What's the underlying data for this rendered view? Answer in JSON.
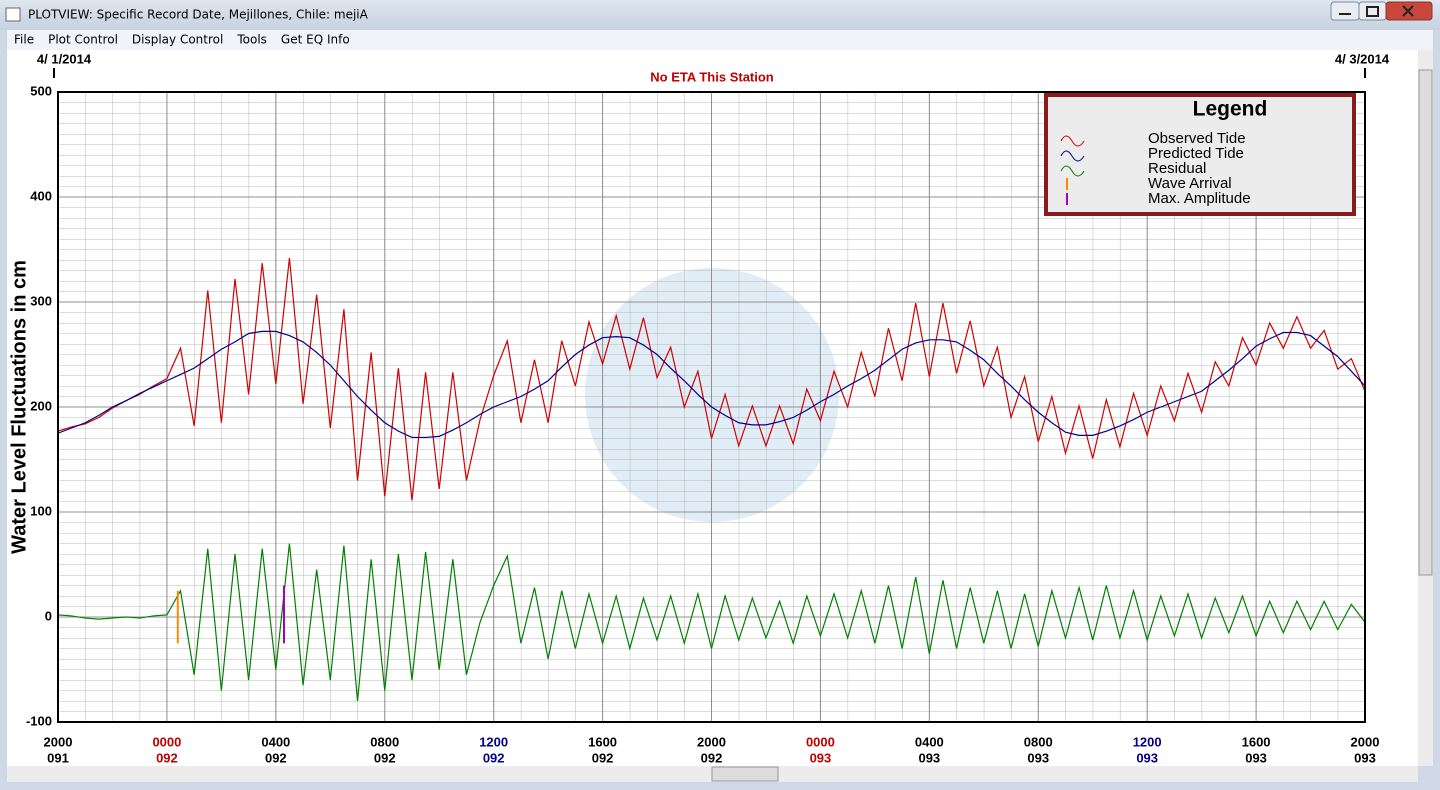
{
  "window": {
    "title": "PLOTVIEW: Specific Record Date, Mejillones, Chile: mejiA",
    "menu": [
      "File",
      "Plot Control",
      "Display Control",
      "Tools",
      "Get EQ Info"
    ]
  },
  "chart_data": {
    "type": "line",
    "title": "No ETA This Station",
    "ylabel": "Water Level Fluctuations in cm",
    "start_date": "4/ 1/2014",
    "end_date": "4/ 3/2014",
    "legend_title": "Legend",
    "legend": "upper right",
    "grid": true,
    "xlim": [
      0,
      48
    ],
    "ylim": [
      -100,
      500
    ],
    "yticks": [
      -100,
      0,
      100,
      200,
      300,
      400,
      500
    ],
    "xticks": [
      {
        "value": 0,
        "label": "2000",
        "day": "091",
        "color": "#000000"
      },
      {
        "value": 4,
        "label": "0000",
        "day": "092",
        "color": "#c00000"
      },
      {
        "value": 8,
        "label": "0400",
        "day": "092",
        "color": "#000000"
      },
      {
        "value": 12,
        "label": "0800",
        "day": "092",
        "color": "#000000"
      },
      {
        "value": 16,
        "label": "1200",
        "day": "092",
        "color": "#00008b"
      },
      {
        "value": 20,
        "label": "1600",
        "day": "092",
        "color": "#000000"
      },
      {
        "value": 24,
        "label": "2000",
        "day": "092",
        "color": "#000000"
      },
      {
        "value": 28,
        "label": "0000",
        "day": "093",
        "color": "#c00000"
      },
      {
        "value": 32,
        "label": "0400",
        "day": "093",
        "color": "#000000"
      },
      {
        "value": 36,
        "label": "0800",
        "day": "093",
        "color": "#000000"
      },
      {
        "value": 40,
        "label": "1200",
        "day": "093",
        "color": "#00008b"
      },
      {
        "value": 44,
        "label": "1600",
        "day": "093",
        "color": "#000000"
      },
      {
        "value": 48,
        "label": "2000",
        "day": "093",
        "color": "#000000"
      }
    ],
    "x": [
      0,
      0.5,
      1,
      1.5,
      2,
      2.5,
      3,
      3.5,
      4,
      4.5,
      5,
      5.5,
      6,
      6.5,
      7,
      7.5,
      8,
      8.5,
      9,
      9.5,
      10,
      10.5,
      11,
      11.5,
      12,
      12.5,
      13,
      13.5,
      14,
      14.5,
      15,
      15.5,
      16,
      16.5,
      17,
      17.5,
      18,
      18.5,
      19,
      19.5,
      20,
      20.5,
      21,
      21.5,
      22,
      22.5,
      23,
      23.5,
      24,
      24.5,
      25,
      25.5,
      26,
      26.5,
      27,
      27.5,
      28,
      28.5,
      29,
      29.5,
      30,
      30.5,
      31,
      31.5,
      32,
      32.5,
      33,
      33.5,
      34,
      34.5,
      35,
      35.5,
      36,
      36.5,
      37,
      37.5,
      38,
      38.5,
      39,
      39.5,
      40,
      40.5,
      41,
      41.5,
      42,
      42.5,
      43,
      43.5,
      44,
      44.5,
      45,
      45.5,
      46,
      46.5,
      47,
      47.5,
      48
    ],
    "series": [
      {
        "name": "Observed Tide",
        "color": "#d00000",
        "values": [
          177,
          181,
          184,
          190,
          199,
          206,
          212,
          220,
          227,
          256,
          182,
          311,
          185,
          322,
          212,
          337,
          222,
          342,
          203,
          307,
          180,
          293,
          130,
          252,
          115,
          237,
          111,
          233,
          122,
          233,
          130,
          188,
          230,
          263,
          185,
          245,
          185,
          263,
          220,
          281,
          241,
          287,
          236,
          285,
          228,
          257,
          200,
          234,
          170,
          212,
          163,
          201,
          163,
          201,
          165,
          217,
          187,
          234,
          200,
          252,
          210,
          275,
          225,
          299,
          229,
          299,
          232,
          282,
          220,
          257,
          190,
          229,
          167,
          210,
          156,
          201,
          151,
          207,
          162,
          213,
          173,
          220,
          187,
          232,
          195,
          243,
          220,
          266,
          240,
          280,
          256,
          286,
          256,
          273,
          236,
          246,
          215
        ]
      },
      {
        "name": "Predicted Tide",
        "color": "#00008b",
        "values": [
          175,
          180,
          185,
          192,
          200,
          206,
          213,
          219,
          225,
          231,
          237,
          246,
          255,
          262,
          270,
          272,
          272,
          268,
          262,
          252,
          240,
          225,
          210,
          197,
          185,
          177,
          171,
          171,
          172,
          178,
          185,
          193,
          200,
          205,
          210,
          217,
          225,
          238,
          250,
          259,
          266,
          267,
          266,
          259,
          250,
          237,
          225,
          212,
          200,
          192,
          185,
          183,
          183,
          186,
          190,
          197,
          205,
          212,
          220,
          227,
          235,
          245,
          255,
          261,
          264,
          264,
          262,
          254,
          245,
          232,
          220,
          207,
          195,
          185,
          176,
          173,
          173,
          177,
          182,
          188,
          195,
          200,
          205,
          210,
          215,
          225,
          235,
          246,
          258,
          265,
          271,
          271,
          268,
          258,
          248,
          234,
          220
        ]
      },
      {
        "name": "Residual",
        "color": "#008000",
        "values": [
          2,
          1,
          -1,
          -2,
          -1,
          0,
          -1,
          1,
          2,
          25,
          -55,
          65,
          -70,
          60,
          -60,
          65,
          -50,
          70,
          -65,
          45,
          -60,
          68,
          -80,
          55,
          -70,
          60,
          -60,
          62,
          -50,
          55,
          -55,
          -5,
          30,
          58,
          -25,
          28,
          -40,
          25,
          -30,
          22,
          -25,
          20,
          -30,
          18,
          -22,
          20,
          -25,
          22,
          -30,
          20,
          -22,
          18,
          -20,
          15,
          -25,
          20,
          -18,
          22,
          -20,
          25,
          -25,
          30,
          -30,
          38,
          -35,
          35,
          -30,
          28,
          -25,
          25,
          -30,
          22,
          -28,
          25,
          -20,
          28,
          -22,
          30,
          -20,
          25,
          -22,
          20,
          -18,
          22,
          -20,
          18,
          -15,
          20,
          -18,
          15,
          -15,
          15,
          -12,
          15,
          -12,
          12,
          -5
        ]
      }
    ],
    "markers": [
      {
        "name": "Wave Arrival",
        "color": "#ff8c00",
        "x": 4.4,
        "values": [
          25,
          -25
        ]
      },
      {
        "name": "Max. Amplitude",
        "color": "#a000c0",
        "x": 8.3,
        "values": [
          30,
          -25
        ]
      }
    ]
  }
}
